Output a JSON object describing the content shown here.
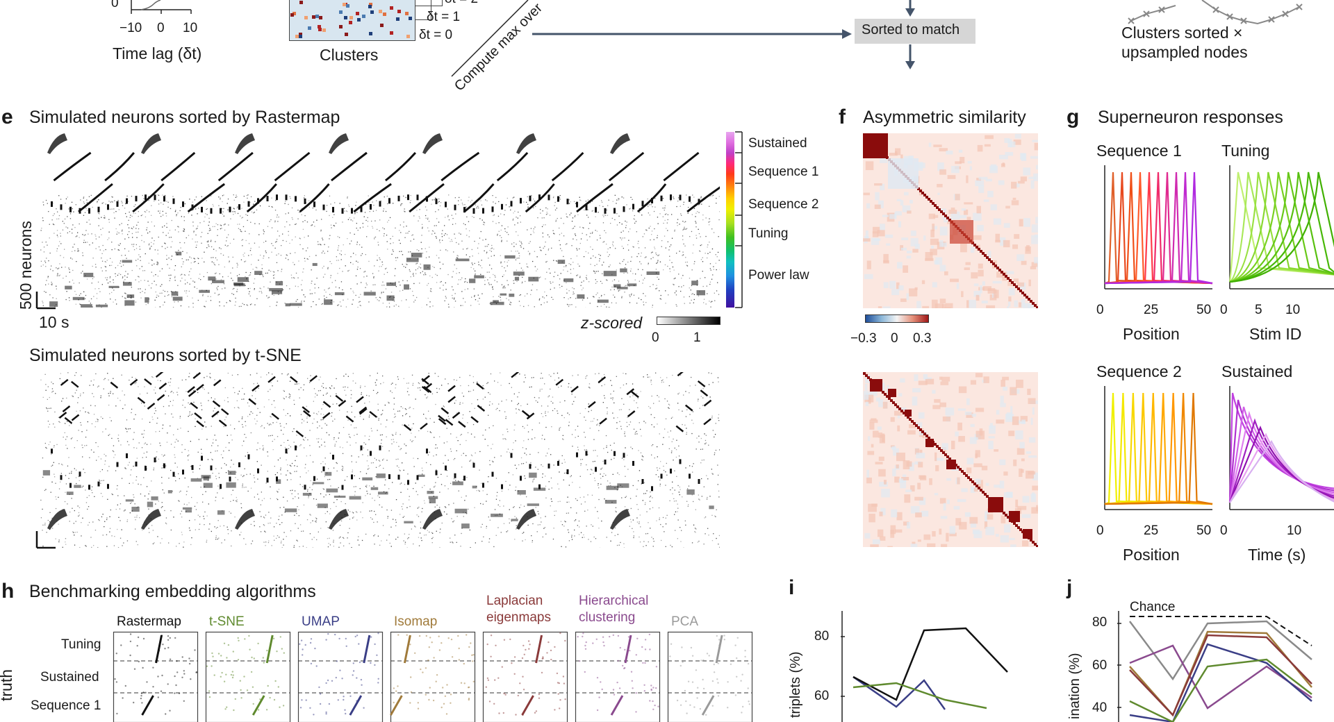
{
  "top": {
    "lag_axis": {
      "tick_zero_y": "0",
      "ticks": [
        "−10",
        "0",
        "10"
      ],
      "xlabel": "Time lag (δt)"
    },
    "clusters_label": "Clusters",
    "lag_tags": [
      "δt = 2",
      "δt = 1",
      "δt = 0"
    ],
    "diag_label": "Compute max over",
    "sorted_label": "Sorted to match",
    "clusters_sorted_1": "Clusters sorted ×",
    "clusters_sorted_2": "upsampled nodes"
  },
  "panel_e": {
    "label": "e",
    "title": "Simulated neurons sorted by Rastermap",
    "ylabel": "500 neurons",
    "timebar": "10 s",
    "categories": [
      "Sustained",
      "Sequence 1",
      "Sequence 2",
      "Tuning",
      "Power law"
    ],
    "zscore_label": "z-scored",
    "zscore_ticks": [
      "0",
      "1"
    ],
    "title2": "Simulated neurons sorted by t-SNE"
  },
  "panel_f": {
    "label": "f",
    "title": "Asymmetric similarity",
    "cbar_ticks": [
      "−0.3",
      "0",
      "0.3"
    ]
  },
  "panel_g": {
    "label": "g",
    "title": "Superneuron responses",
    "plots": [
      {
        "title": "Sequence 1",
        "ticks": [
          "0",
          "25",
          "50"
        ],
        "xlabel": "Position"
      },
      {
        "title": "Tuning",
        "ticks": [
          "0",
          "5",
          "10"
        ],
        "xlabel": "Stim ID"
      },
      {
        "title": "Sequence 2",
        "ticks": [
          "0",
          "25",
          "50"
        ],
        "xlabel": "Position"
      },
      {
        "title": "Sustained",
        "ticks": [
          "0",
          "10"
        ],
        "xlabel": "Time (s)"
      }
    ]
  },
  "panel_h": {
    "label": "h",
    "title": "Benchmarking embedding algorithms",
    "methods": [
      {
        "name": "Rastermap",
        "color": "#111111"
      },
      {
        "name": "t-SNE",
        "color": "#5f8a2e"
      },
      {
        "name": "UMAP",
        "color": "#3a3e86"
      },
      {
        "name": "Isomap",
        "color": "#a07a3a"
      },
      {
        "name": "Laplacian\neigenmaps",
        "color": "#8a3a3a"
      },
      {
        "name": "Hierarchical\nclustering",
        "color": "#8a4a8e"
      },
      {
        "name": "PCA",
        "color": "#9a9a9a"
      }
    ],
    "row_labels": [
      "Tuning",
      "Sustained",
      "Sequence 1"
    ],
    "axis_label": "truth"
  },
  "panel_i": {
    "label": "i",
    "ylabel": "triplets (%)",
    "ticks": [
      "80",
      "60"
    ]
  },
  "panel_j": {
    "label": "j",
    "ylabel": "ination (%)",
    "ticks": [
      "80",
      "60",
      "40"
    ],
    "chance": "Chance"
  }
}
